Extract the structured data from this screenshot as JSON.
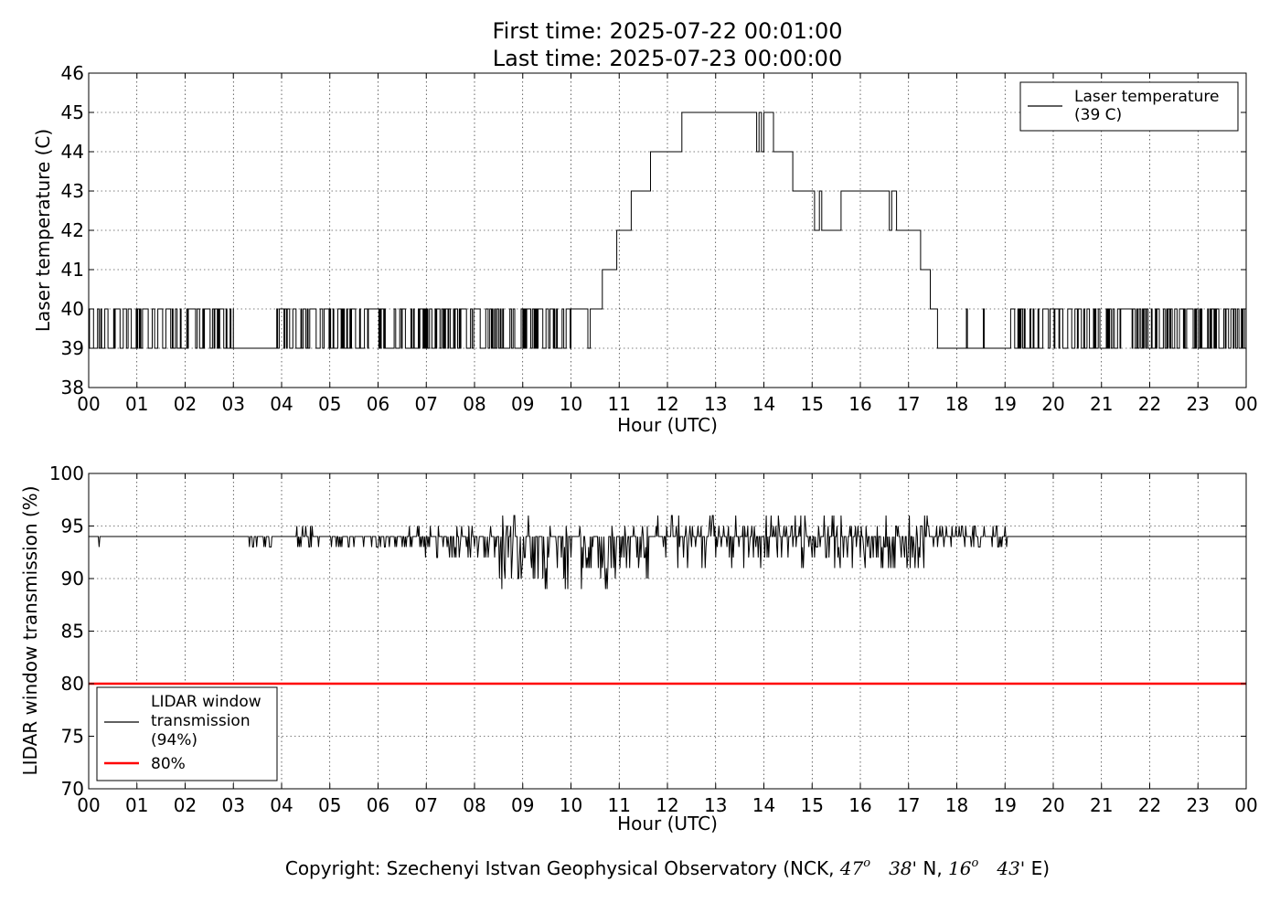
{
  "title": {
    "line1": "First time: 2025-07-22 00:01:00",
    "line2": "Last time: 2025-07-23 00:00:00"
  },
  "footer": {
    "prefix": "Copyright: Szechenyi Istvan Geophysical Observatory (NCK, ",
    "lat_num": "47",
    "lat_sup": "o",
    "lat_min": "38'",
    "lat_dir": "N, ",
    "lon_num": "16",
    "lon_sup": "o",
    "lon_min": "43'",
    "lon_dir": "E)"
  },
  "colors": {
    "series": "#000000",
    "threshold": "#ff0000",
    "grid": "#000000"
  },
  "chart_data": [
    {
      "type": "line",
      "xlabel": "Hour (UTC)",
      "ylabel": "Laser temperature (C)",
      "xlim": [
        0,
        24
      ],
      "ylim": [
        38,
        46
      ],
      "yticks": [
        38,
        39,
        40,
        41,
        42,
        43,
        44,
        45,
        46
      ],
      "xtick_labels": [
        "00",
        "01",
        "02",
        "03",
        "04",
        "05",
        "06",
        "07",
        "08",
        "09",
        "10",
        "11",
        "12",
        "13",
        "14",
        "15",
        "16",
        "17",
        "18",
        "19",
        "20",
        "21",
        "22",
        "23",
        "00"
      ],
      "grid": true,
      "legend_position": "top-right",
      "series": [
        {
          "name": "Laser temperature\n(39 C)",
          "baseline_segments": [
            {
              "x0": 0.0,
              "x1": 3.0,
              "value": 39,
              "toggle_to": 40,
              "jitter_density": 0.7
            },
            {
              "x0": 3.0,
              "x1": 3.9,
              "value": 39,
              "toggle_to": 39,
              "jitter_density": 0
            },
            {
              "x0": 3.9,
              "x1": 10.0,
              "value": 40,
              "toggle_to": 39,
              "jitter_density": 0.8
            },
            {
              "x0": 17.6,
              "x1": 19.1,
              "value": 39,
              "toggle_to": 39,
              "jitter_density": 0
            },
            {
              "x0": 19.1,
              "x1": 24.0,
              "value": 39,
              "toggle_to": 40,
              "jitter_density": 0.8
            }
          ],
          "steps": [
            [
              10.0,
              40
            ],
            [
              10.3,
              40
            ],
            [
              10.35,
              39
            ],
            [
              10.4,
              40
            ],
            [
              10.65,
              41
            ],
            [
              10.95,
              42
            ],
            [
              11.25,
              43
            ],
            [
              11.65,
              44
            ],
            [
              12.3,
              45
            ],
            [
              13.85,
              44
            ],
            [
              13.9,
              45
            ],
            [
              13.95,
              44
            ],
            [
              14.0,
              45
            ],
            [
              14.2,
              44
            ],
            [
              14.6,
              43
            ],
            [
              15.05,
              42
            ],
            [
              15.15,
              43
            ],
            [
              15.2,
              42
            ],
            [
              15.6,
              43
            ],
            [
              16.6,
              42
            ],
            [
              16.65,
              43
            ],
            [
              16.75,
              42
            ],
            [
              17.25,
              41
            ],
            [
              17.45,
              40
            ],
            [
              17.6,
              39
            ],
            [
              18.2,
              40
            ],
            [
              18.22,
              39
            ],
            [
              18.55,
              40
            ],
            [
              18.57,
              39
            ],
            [
              19.1,
              39
            ]
          ]
        }
      ]
    },
    {
      "type": "line",
      "xlabel": "Hour (UTC)",
      "ylabel": "LIDAR window transmission (%)",
      "xlim": [
        0,
        24
      ],
      "ylim": [
        70,
        100
      ],
      "yticks": [
        70,
        75,
        80,
        85,
        90,
        95,
        100
      ],
      "xtick_labels": [
        "00",
        "01",
        "02",
        "03",
        "04",
        "05",
        "06",
        "07",
        "08",
        "09",
        "10",
        "11",
        "12",
        "13",
        "14",
        "15",
        "16",
        "17",
        "18",
        "19",
        "20",
        "21",
        "22",
        "23",
        "00"
      ],
      "grid": true,
      "legend_position": "bottom-left",
      "series": [
        {
          "name": "LIDAR window\ntransmission\n(94%)",
          "baseline": 94,
          "noisy_ranges": [
            {
              "x0": 0.2,
              "x1": 0.3,
              "low": 93,
              "high": 94
            },
            {
              "x0": 3.3,
              "x1": 3.9,
              "low": 93,
              "high": 94
            },
            {
              "x0": 4.3,
              "x1": 4.8,
              "low": 93,
              "high": 95
            },
            {
              "x0": 5.0,
              "x1": 6.6,
              "low": 93,
              "high": 94
            },
            {
              "x0": 6.6,
              "x1": 8.5,
              "low": 92,
              "high": 95
            },
            {
              "x0": 8.5,
              "x1": 10.0,
              "low": 89,
              "high": 96
            },
            {
              "x0": 10.0,
              "x1": 11.0,
              "low": 89,
              "high": 95
            },
            {
              "x0": 11.0,
              "x1": 12.3,
              "low": 90,
              "high": 96
            },
            {
              "x0": 12.3,
              "x1": 17.5,
              "low": 91,
              "high": 96
            },
            {
              "x0": 17.5,
              "x1": 19.05,
              "low": 93,
              "high": 95
            }
          ]
        },
        {
          "name": "80%",
          "constant": 80
        }
      ]
    }
  ]
}
